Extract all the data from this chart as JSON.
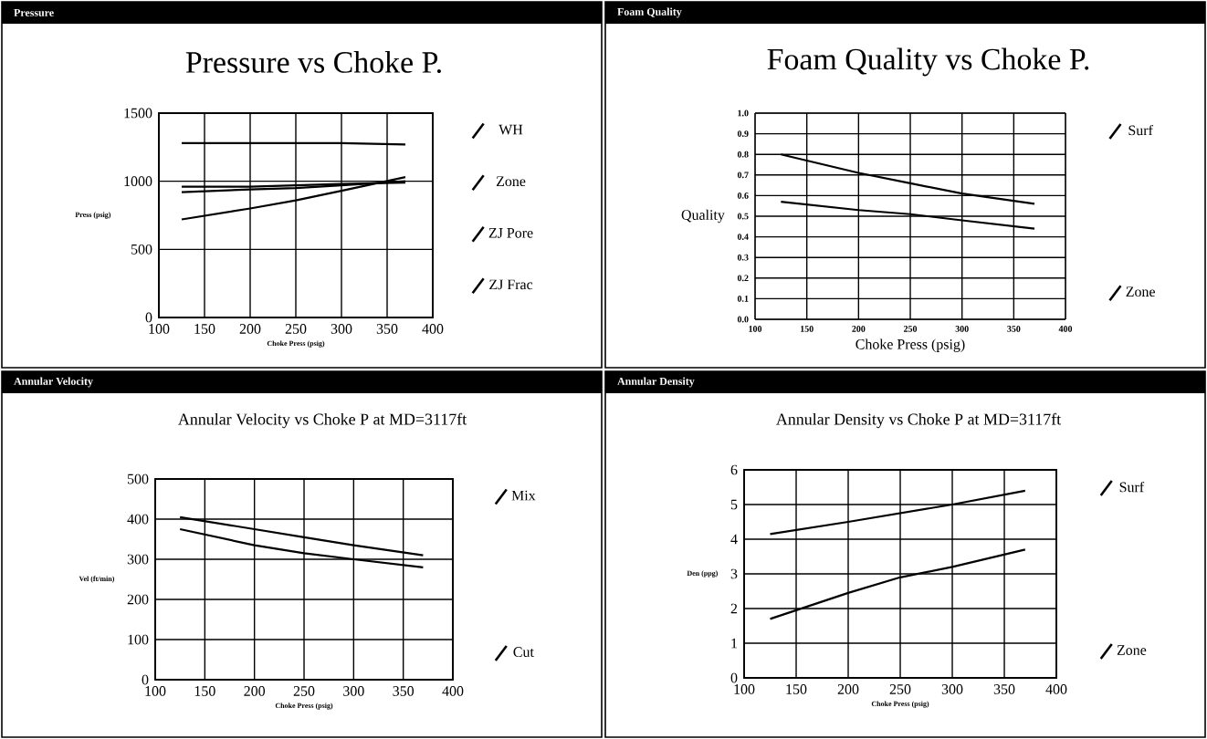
{
  "chart_data": [
    {
      "type": "line",
      "title": "Pressure vs Choke P.",
      "annotations": [
        "Pressure"
      ],
      "xlabel": "Choke Press (psig)",
      "ylabel": "Press (psig)",
      "x": [
        125,
        200,
        250,
        300,
        370
      ],
      "xlim": [
        100,
        400
      ],
      "xticks": [
        100,
        150,
        200,
        250,
        300,
        350,
        400
      ],
      "ylim": [
        0,
        1500
      ],
      "yticks": [
        0,
        500,
        1000,
        1500
      ],
      "grid": true,
      "legend": "right",
      "marker": "none",
      "series": [
        {
          "name": "WH",
          "color": "#000000",
          "values": [
            1280,
            1280,
            1280,
            1280,
            1270
          ]
        },
        {
          "name": "Zone",
          "color": "#000000",
          "values": [
            720,
            800,
            860,
            930,
            1030
          ]
        },
        {
          "name": "ZJ Pore",
          "color": "#000000",
          "values": [
            960,
            960,
            970,
            980,
            990
          ]
        },
        {
          "name": "ZJ Frac",
          "color": "#000000",
          "values": [
            920,
            940,
            950,
            970,
            1000
          ]
        }
      ]
    },
    {
      "type": "line",
      "title": "Foam Quality vs Choke P.",
      "annotations": [
        "Foam Quality"
      ],
      "xlabel": "Choke Press (psig)",
      "ylabel": "Quality",
      "x": [
        125,
        200,
        250,
        300,
        370
      ],
      "xlim": [
        100,
        400
      ],
      "xticks": [
        100,
        150,
        200,
        250,
        300,
        350,
        400
      ],
      "ylim": [
        0,
        1
      ],
      "yticks": [
        {
          "value": 0,
          "label": "0.0"
        },
        0.1,
        0.2,
        0.3,
        0.4,
        0.5,
        0.6,
        0.7,
        0.8,
        0.9,
        {
          "value": 1,
          "label": "1.0"
        }
      ],
      "grid": true,
      "legend": "right",
      "marker": "none",
      "series": [
        {
          "name": "Surf",
          "color": "#000000",
          "values": [
            0.8,
            0.71,
            0.66,
            0.61,
            0.56
          ]
        },
        {
          "name": "Zone",
          "color": "#000000",
          "values": [
            0.57,
            0.53,
            0.51,
            0.48,
            0.44
          ]
        }
      ]
    },
    {
      "type": "line",
      "title": "Annular Velocity vs Choke P  at MD=3117ft",
      "annotations": [
        "Annular Velocity"
      ],
      "xlabel": "Choke Press (psig)",
      "ylabel": "Vel (ft/min)",
      "x": [
        125,
        200,
        250,
        300,
        370
      ],
      "xlim": [
        100,
        400
      ],
      "xticks": [
        100,
        150,
        200,
        250,
        300,
        350,
        400
      ],
      "ylim": [
        0,
        500
      ],
      "yticks": [
        0,
        100,
        200,
        300,
        400,
        500
      ],
      "grid": true,
      "legend": "right",
      "marker": "none",
      "series": [
        {
          "name": "Mix",
          "color": "#000000",
          "values": [
            405,
            375,
            355,
            335,
            310
          ]
        },
        {
          "name": "Cut",
          "color": "#000000",
          "values": [
            375,
            335,
            315,
            300,
            280
          ]
        }
      ]
    },
    {
      "type": "line",
      "title": "Annular Density vs Choke P  at MD=3117ft",
      "annotations": [
        "Annular Density"
      ],
      "xlabel": "Choke Press (psig)",
      "ylabel": "Den (ppg)",
      "x": [
        125,
        200,
        250,
        300,
        370
      ],
      "xlim": [
        100,
        400
      ],
      "xticks": [
        100,
        150,
        200,
        250,
        300,
        350,
        400
      ],
      "ylim": [
        0,
        6
      ],
      "yticks": [
        0,
        1,
        2,
        3,
        4,
        5,
        6
      ],
      "grid": true,
      "legend": "right",
      "marker": "none",
      "series": [
        {
          "name": "Surf",
          "color": "#000000",
          "values": [
            4.15,
            4.5,
            4.75,
            5.0,
            5.4
          ]
        },
        {
          "name": "Zone",
          "color": "#000000",
          "values": [
            1.7,
            2.45,
            2.9,
            3.2,
            3.7
          ]
        }
      ]
    }
  ]
}
